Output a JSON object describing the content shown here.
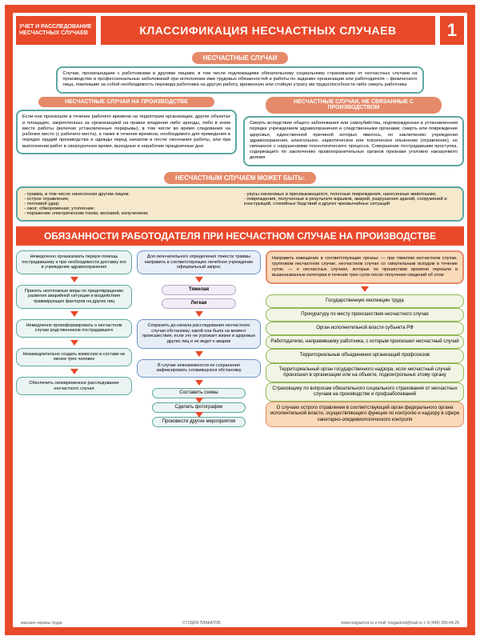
{
  "colors": {
    "orange": "#e8492a",
    "teal": "#5aa8a0",
    "blue": "#6a94c8",
    "green": "#8fb954",
    "purple": "#b8a5c9",
    "salmon": "#e58a6a",
    "beige": "#f5e8cc",
    "peach": "#f9d9b8"
  },
  "header": {
    "corner": "УЧЕТ И РАССЛЕДОВАНИЕ НЕСЧАСТНЫХ СЛУЧАЕВ",
    "title": "КЛАССИФИКАЦИЯ НЕСЧАСТНЫХ СЛУЧАЕВ",
    "page": "1"
  },
  "section1": {
    "pill": "НЕСЧАСТНЫЕ СЛУЧАИ",
    "definition": "Случаи, произошедшие с работниками и другими лицами, в том числе подлежащими обязательному социальному страхованию от несчастных случаев на производстве и профессиональных заболеваний при исполнении ими трудовых обязанностей и работы по заданию организации или работодателя – физического лица, повлекшие за собой необходимость перевода работника на другую работу, временную или стойкую утрату им трудоспособности либо смерть работника",
    "left_title": "НЕСЧАСТНЫЕ СЛУЧАИ НА ПРОИЗВОДСТВЕ",
    "left_text": "Если они произошли в течение рабочего времени на территории организации, других объектах и площадях, закрепленных за организацией на правах владения либо аренды, либо в ином месте работы (включая установленные перерывы), в том числе во время следования на рабочее место (с рабочего места), а также в течение времени, необходимого для приведения в порядок орудий производства и одежды перед началом и после окончания работы, или при выполнении работ в сверхурочное время, выходные и нерабочие праздничные дни",
    "right_title": "НЕСЧАСТНЫЕ СЛУЧАИ, НЕ СВЯЗАННЫЕ С ПРОИЗВОДСТВОМ",
    "right_text": "Смерть вследствие общего заболевания или самоубийства, подтвержденная в установленном порядке учреждением здравоохранения и следственными органами; смерть или повреждение здоровья, единственной причиной которых явилось, по заключению учреждения здравоохранения, алкогольное, наркотическое или токсическое опьянение (отравление), не связанное с нарушениями технологического процесса. Совершение пострадавшим проступка, содержащего по заключению правоохранительных органов признаки уголовно наказуемого деяния",
    "examples_title": "НЕСЧАСТНЫМ СЛУЧАЕМ МОЖЕТ БЫТЬ:",
    "examples_left": [
      "травма, в том числе нанесенная другим лицом;",
      "острое отравление;",
      "тепловой удар;",
      "ожог; обморожение; утопление;",
      "поражение электрическим током, молнией, излучением;"
    ],
    "examples_right": [
      "укусы насекомых и пресмыкающихся, телесные повреждения, нанесенные животными;",
      "повреждения, полученные в результате взрывов, аварий, разрушения зданий, сооружений и конструкций, стихийных бедствий и других чрезвычайных ситуаций"
    ]
  },
  "section2": {
    "title": "ОБЯЗАННОСТИ РАБОТОДАТЕЛЯ ПРИ НЕСЧАСТНОМ СЛУЧАЕ НА ПРОИЗВОДСТВЕ",
    "colA": [
      "Немедленно организовать первую помощь пострадавшему и при необходимости доставку его в учреждение здравоохранения",
      "Принять неотложные меры по предотвращению развития аварийной ситуации и воздействия травмирующих факторов на других лиц",
      "Немедленно проинформировать о несчастном случае родственников пострадавшего",
      "Незамедлительно создать комиссию в составе не менее трех человек",
      "Обеспечить своевременное расследование несчастного случая"
    ],
    "colB_top": "Для окончательного определения тяжести травмы направить в соответствующее лечебное учреждение официальный запрос",
    "colB_sev": [
      "Тяжелая",
      "Легкая"
    ],
    "colB_mid": "Сохранить до начала расследования несчастного случая обстановку, какой она была на момент происшествия, если это не угрожает жизни и здоровью других лиц и не ведет к аварии",
    "colB_alt": "В случае невозможности ее сохранения зафиксировать сложившуюся обстановку",
    "colB_actions": [
      "Составить схемы",
      "Сделать фотографии",
      "Произвести другие мероприятия"
    ],
    "colC_notice": "Направить извещение в соответствующие органы: — при тяжелом несчастном случае, групповом несчастном случае, несчастном случае со смертельным исходом в течение суток; — о несчастных случаях, которые по прошествии времени перешли в вышеназванные категории в течение трех суток после получения сведений об этом",
    "colC_items": [
      "Государственную инспекцию труда",
      "Прокуратуру по месту происшествия несчастного случая",
      "Орган исполнительной власти субъекта РФ",
      "Работодателю, направившему работника, с которым произошел несчастный случай",
      "Территориальные объединения организаций профсоюзов",
      "Территориальный орган государственного надзора, если несчастный случай произошел в организации или на объекте, подконтрольных этому органу",
      "Страховщику по вопросам обязательного социального страхования от несчастных случаев на производстве и профзаболеваний",
      "О случаях острого отравления в соответствующий орган федерального органа исполнительной власти, осуществляющего функции по контролю и надзору в сфере санитарно-эпидемиологического контроля"
    ]
  },
  "footer": {
    "left": "магазин охраны труда",
    "mid": "СТУДИЯ ПЛАКАТОВ",
    "right": "www.magazinot.ru  e-mail: magazinot@mail.ru  т. 8 (499) 390-44-25"
  }
}
